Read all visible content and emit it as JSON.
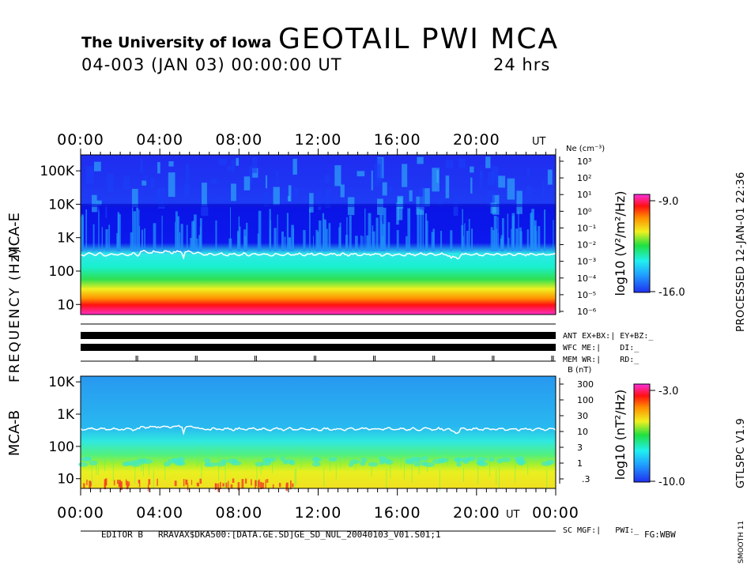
{
  "header": {
    "institution": "The University of Iowa",
    "title": "GEOTAIL PWI MCA",
    "date_line": "04-003 (JAN 03) 00:00:00 UT",
    "duration": "24 hrs"
  },
  "side": {
    "processed": "PROCESSED 12-JAN-01 22:36",
    "version": "GTLSPC V1.9",
    "smooth": "SMOOTH 11"
  },
  "footer": {
    "editor": "EDITOR B",
    "path": "RRAVAX$DKA500:[DATA.GE.SD]GE_SD_NUL_20040103_V01.S01;1",
    "fg": "FG:WBW"
  },
  "axis": {
    "frequency_label": "FREQUENCY (Hz)",
    "ut": "UT",
    "top_time_ticks": [
      "00:00",
      "04:00",
      "08:00",
      "12:00",
      "16:00",
      "20:00"
    ],
    "bottom_time_ticks": [
      "00:00",
      "04:00",
      "08:00",
      "12:00",
      "16:00",
      "20:00",
      "00:00"
    ]
  },
  "status": {
    "ant": "ANT EX+BX:| EY+BZ:_",
    "wfc": "WFC ME:|    DI:_",
    "mem": "MEM WR:|    RD:_",
    "sc": "SC MGF:|   PWI:_"
  },
  "chart_data": [
    {
      "type": "heatmap",
      "panel": "MCA-E",
      "ylabel": "MCA-E",
      "y_scale": "log",
      "ylim": [
        5,
        300000
      ],
      "y_ticks": [
        "100K",
        "10K",
        "1K",
        "100",
        "10"
      ],
      "right_axis_label": "Ne (cm⁻³)",
      "right_ticks": [
        "10³",
        "10²",
        "10¹",
        "10⁰",
        "10⁻¹",
        "10⁻²",
        "10⁻³",
        "10⁻⁴",
        "10⁻⁵",
        "10⁻⁶"
      ],
      "colorbar": {
        "label": "log10 (V²/m²/Hz)",
        "max": "-9.0",
        "min": "-16.0"
      },
      "x_range_hours": [
        0,
        24
      ],
      "overlay_line": "electron plasma frequency ~ 300 Hz"
    },
    {
      "type": "heatmap",
      "panel": "MCA-B",
      "ylabel": "MCA-B",
      "y_scale": "log",
      "ylim": [
        5,
        15000
      ],
      "y_ticks": [
        "10K",
        "1K",
        "100",
        "10"
      ],
      "right_axis_label": "B (nT)",
      "right_ticks": [
        "300",
        "100",
        "30",
        "10",
        "3",
        "1",
        ".3"
      ],
      "colorbar": {
        "label": "log10 (nT²/Hz)",
        "max": "-3.0",
        "min": "-10.0"
      },
      "x_range_hours": [
        0,
        24
      ],
      "overlay_line": "electron cyclotron frequency ~ 300 Hz"
    }
  ]
}
